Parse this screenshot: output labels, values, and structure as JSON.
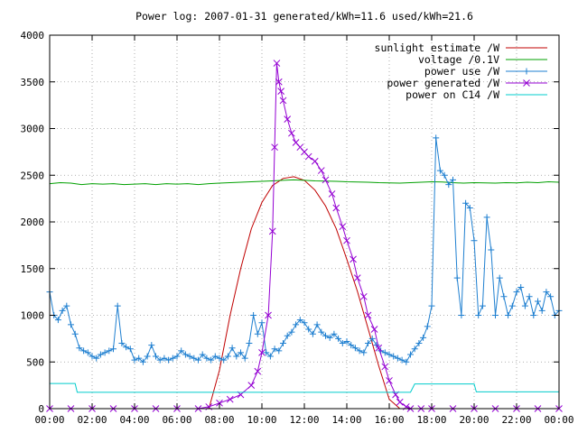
{
  "chart_data": {
    "type": "line",
    "title": "Power log: 2007-01-31 generated/kWh=11.6 used/kWh=21.6",
    "xlim": [
      0,
      24
    ],
    "ylim": [
      0,
      4000
    ],
    "x_ticks": [
      "00:00",
      "02:00",
      "04:00",
      "06:00",
      "08:00",
      "10:00",
      "12:00",
      "14:00",
      "16:00",
      "18:00",
      "20:00",
      "22:00",
      "00:00"
    ],
    "y_ticks": [
      0,
      500,
      1000,
      1500,
      2000,
      2500,
      3000,
      3500,
      4000
    ],
    "grid": true,
    "legend_position": "top-right",
    "series": [
      {
        "name": "sunlight estimate /W",
        "color": "#c00000",
        "marker": "none",
        "x": [
          7.5,
          8.0,
          8.5,
          9.0,
          9.5,
          10.0,
          10.5,
          11.0,
          11.5,
          12.0,
          12.5,
          13.0,
          13.5,
          14.0,
          14.5,
          15.0,
          15.5,
          16.0,
          16.5
        ],
        "y": [
          0,
          412,
          1000,
          1500,
          1927,
          2209,
          2390,
          2466,
          2484,
          2445,
          2340,
          2170,
          1927,
          1600,
          1255,
          860,
          460,
          100,
          0
        ]
      },
      {
        "name": "voltage /0.1V",
        "color": "#00a000",
        "marker": "none",
        "x": [
          0,
          0.5,
          1,
          1.5,
          2,
          2.5,
          3,
          3.5,
          4,
          4.5,
          5,
          5.5,
          6,
          6.5,
          7,
          7.5,
          8,
          8.5,
          9,
          9.5,
          10,
          10.5,
          11,
          11.5,
          12,
          12.5,
          13,
          13.5,
          14,
          14.5,
          15,
          15.5,
          16,
          16.5,
          17,
          17.5,
          18,
          18.5,
          19,
          19.5,
          20,
          20.5,
          21,
          21.5,
          22,
          22.5,
          23,
          23.5,
          24
        ],
        "y": [
          2410,
          2420,
          2415,
          2400,
          2410,
          2405,
          2410,
          2400,
          2405,
          2410,
          2400,
          2410,
          2405,
          2410,
          2400,
          2410,
          2415,
          2420,
          2425,
          2430,
          2435,
          2440,
          2445,
          2450,
          2445,
          2440,
          2438,
          2435,
          2430,
          2428,
          2425,
          2420,
          2418,
          2415,
          2420,
          2425,
          2430,
          2428,
          2420,
          2415,
          2420,
          2418,
          2415,
          2420,
          2418,
          2425,
          2420,
          2430,
          2425
        ]
      },
      {
        "name": "power use /W",
        "color": "#1e7fd0",
        "marker": "plus",
        "x": [
          0,
          0.2,
          0.4,
          0.6,
          0.8,
          1.0,
          1.2,
          1.4,
          1.6,
          1.8,
          2.0,
          2.2,
          2.4,
          2.6,
          2.8,
          3.0,
          3.2,
          3.4,
          3.6,
          3.8,
          4.0,
          4.2,
          4.4,
          4.6,
          4.8,
          5.0,
          5.2,
          5.4,
          5.6,
          5.8,
          6.0,
          6.2,
          6.4,
          6.6,
          6.8,
          7.0,
          7.2,
          7.4,
          7.6,
          7.8,
          8.0,
          8.2,
          8.4,
          8.6,
          8.8,
          9.0,
          9.2,
          9.4,
          9.6,
          9.8,
          10.0,
          10.2,
          10.4,
          10.6,
          10.8,
          11.0,
          11.2,
          11.4,
          11.6,
          11.8,
          12.0,
          12.2,
          12.4,
          12.6,
          12.8,
          13.0,
          13.2,
          13.4,
          13.6,
          13.8,
          14.0,
          14.2,
          14.4,
          14.6,
          14.8,
          15.0,
          15.2,
          15.4,
          15.6,
          15.8,
          16.0,
          16.2,
          16.4,
          16.6,
          16.8,
          17.0,
          17.2,
          17.4,
          17.6,
          17.8,
          18.0,
          18.2,
          18.4,
          18.6,
          18.8,
          19.0,
          19.2,
          19.4,
          19.6,
          19.8,
          20.0,
          20.2,
          20.4,
          20.6,
          20.8,
          21.0,
          21.2,
          21.4,
          21.6,
          21.8,
          22.0,
          22.2,
          22.4,
          22.6,
          22.8,
          23.0,
          23.2,
          23.4,
          23.6,
          23.8,
          24.0
        ],
        "y": [
          1250,
          1000,
          950,
          1050,
          1100,
          900,
          800,
          650,
          620,
          600,
          560,
          540,
          580,
          600,
          620,
          640,
          1100,
          700,
          660,
          640,
          520,
          540,
          500,
          560,
          680,
          560,
          520,
          540,
          520,
          540,
          560,
          620,
          580,
          560,
          540,
          520,
          580,
          540,
          520,
          560,
          540,
          520,
          560,
          650,
          560,
          600,
          540,
          700,
          1000,
          800,
          920,
          600,
          560,
          640,
          620,
          700,
          780,
          820,
          900,
          950,
          920,
          850,
          800,
          900,
          820,
          780,
          760,
          800,
          750,
          700,
          720,
          680,
          650,
          620,
          600,
          700,
          750,
          680,
          620,
          600,
          580,
          560,
          540,
          520,
          500,
          580,
          640,
          700,
          760,
          880,
          1100,
          2900,
          2550,
          2500,
          2400,
          2450,
          1400,
          1000,
          2200,
          2150,
          1800,
          1000,
          1100,
          2050,
          1700,
          1000,
          1400,
          1200,
          1000,
          1100,
          1250,
          1300,
          1100,
          1200,
          1000,
          1150,
          1050,
          1250,
          1200,
          1000,
          1050
        ]
      },
      {
        "name": "power generated /W",
        "color": "#9400d3",
        "marker": "x",
        "x": [
          0,
          1,
          2,
          3,
          4,
          5,
          6,
          7,
          7.5,
          8.0,
          8.5,
          9.0,
          9.5,
          9.8,
          10.0,
          10.3,
          10.5,
          10.6,
          10.7,
          10.8,
          10.9,
          11.0,
          11.2,
          11.4,
          11.6,
          11.8,
          12.0,
          12.2,
          12.5,
          12.8,
          13.0,
          13.3,
          13.5,
          13.8,
          14.0,
          14.3,
          14.5,
          14.8,
          15.0,
          15.3,
          15.5,
          15.8,
          16.0,
          16.3,
          16.5,
          16.8,
          17.0,
          17.5,
          18,
          19,
          20,
          21,
          22,
          23,
          24
        ],
        "y": [
          0,
          0,
          0,
          0,
          0,
          0,
          0,
          0,
          20,
          60,
          100,
          150,
          250,
          400,
          600,
          1000,
          1900,
          2800,
          3700,
          3500,
          3400,
          3300,
          3100,
          2950,
          2850,
          2800,
          2750,
          2700,
          2650,
          2550,
          2450,
          2300,
          2150,
          1950,
          1800,
          1600,
          1400,
          1200,
          1000,
          850,
          650,
          450,
          300,
          150,
          70,
          20,
          0,
          0,
          0,
          0,
          0,
          0,
          0,
          0,
          0
        ]
      },
      {
        "name": "power on C14 /W",
        "color": "#00cccc",
        "marker": "none",
        "x": [
          0,
          1.2,
          1.3,
          17.0,
          17.2,
          20.0,
          20.1,
          24.0
        ],
        "y": [
          270,
          270,
          175,
          175,
          265,
          265,
          180,
          180
        ]
      }
    ]
  }
}
